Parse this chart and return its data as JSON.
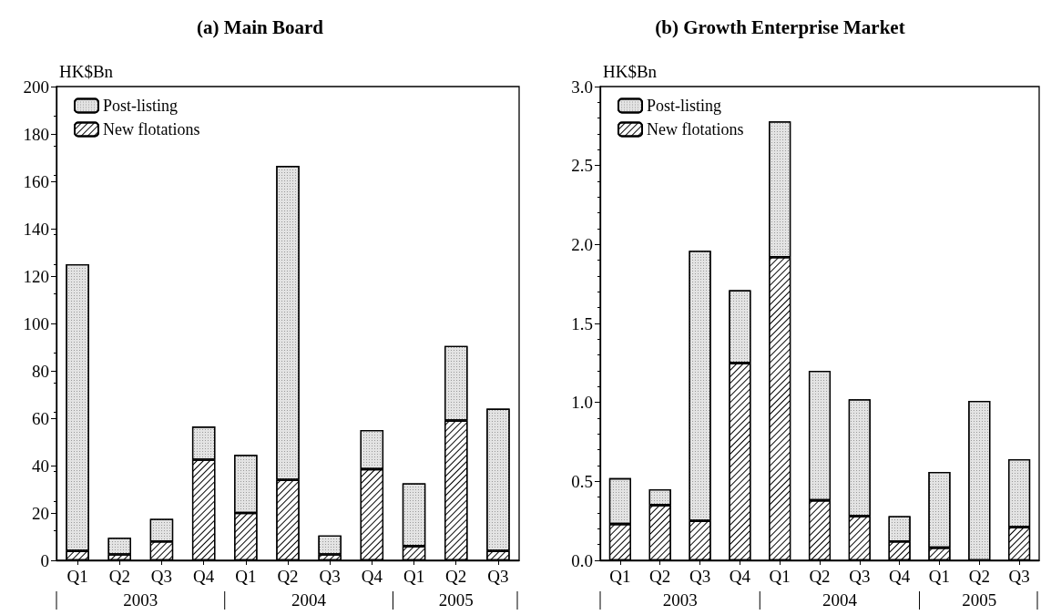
{
  "chart_data": [
    {
      "type": "bar",
      "title": "(a) Main Board",
      "ylabel": "HK$Bn",
      "stacked": true,
      "legend": "top left",
      "grid": false,
      "categories": [
        "Q1",
        "Q2",
        "Q3",
        "Q4",
        "Q1",
        "Q2",
        "Q3",
        "Q4",
        "Q1",
        "Q2",
        "Q3"
      ],
      "series": [
        {
          "name": "New flotations",
          "color": "#ffffff",
          "values": [
            4,
            2.5,
            8,
            42.5,
            20,
            34,
            2.5,
            38.5,
            6,
            59,
            4
          ]
        },
        {
          "name": "Post-listing",
          "color": "#e3e3e3",
          "values": [
            121,
            7,
            9.5,
            14,
            24.5,
            132.5,
            8,
            16.5,
            26.5,
            31.5,
            60
          ]
        }
      ],
      "ylim": [
        0,
        200
      ],
      "yticks": [
        0,
        20,
        40,
        60,
        80,
        100,
        120,
        140,
        160,
        180,
        200
      ],
      "annotations": [
        "2003",
        "2004",
        "2005"
      ]
    },
    {
      "type": "bar",
      "title": "(b) Growth Enterprise Market",
      "ylabel": "HK$Bn",
      "stacked": true,
      "legend": "top left",
      "grid": false,
      "categories": [
        "Q1",
        "Q2",
        "Q3",
        "Q4",
        "Q1",
        "Q2",
        "Q3",
        "Q4",
        "Q1",
        "Q2",
        "Q3"
      ],
      "series": [
        {
          "name": "New flotations",
          "color": "#ffffff",
          "values": [
            0.23,
            0.35,
            0.25,
            1.25,
            1.92,
            0.38,
            0.28,
            0.12,
            0.08,
            0,
            0.21
          ]
        },
        {
          "name": "Post-listing",
          "color": "#e3e3e3",
          "values": [
            0.29,
            0.1,
            1.71,
            0.46,
            0.86,
            0.82,
            0.74,
            0.16,
            0.48,
            1.01,
            0.43
          ]
        }
      ],
      "ylim": [
        0,
        3
      ],
      "yticks": [
        {
          "value": 0,
          "label": "0.0"
        },
        {
          "value": 0.5,
          "label": "0.5"
        },
        {
          "value": 1,
          "label": "1.0"
        },
        {
          "value": 1.5,
          "label": "1.5"
        },
        {
          "value": 2,
          "label": "2.0"
        },
        {
          "value": 2.5,
          "label": "2.5"
        },
        {
          "value": 3,
          "label": "3.0"
        }
      ],
      "annotations": [
        "2003",
        "2004",
        "2005"
      ]
    }
  ]
}
